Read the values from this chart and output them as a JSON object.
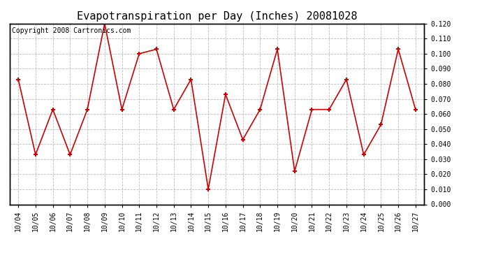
{
  "title": "Evapotranspiration per Day (Inches) 20081028",
  "copyright_text": "Copyright 2008 Cartronics.com",
  "x_labels": [
    "10/04",
    "10/05",
    "10/06",
    "10/07",
    "10/08",
    "10/09",
    "10/10",
    "10/11",
    "10/12",
    "10/13",
    "10/14",
    "10/15",
    "10/16",
    "10/17",
    "10/18",
    "10/19",
    "10/20",
    "10/21",
    "10/22",
    "10/23",
    "10/24",
    "10/25",
    "10/26",
    "10/27"
  ],
  "y_values": [
    0.083,
    0.033,
    0.063,
    0.033,
    0.063,
    0.12,
    0.063,
    0.1,
    0.103,
    0.063,
    0.083,
    0.01,
    0.073,
    0.043,
    0.063,
    0.103,
    0.022,
    0.063,
    0.063,
    0.083,
    0.033,
    0.053,
    0.103,
    0.063
  ],
  "line_color": "#cc0000",
  "marker": "+",
  "marker_size": 5,
  "marker_linewidth": 1.5,
  "ylim": [
    0.0,
    0.12
  ],
  "ytick_interval": 0.01,
  "background_color": "#ffffff",
  "grid_color": "#bbbbbb",
  "title_fontsize": 11,
  "tick_fontsize": 7,
  "copyright_fontsize": 7
}
